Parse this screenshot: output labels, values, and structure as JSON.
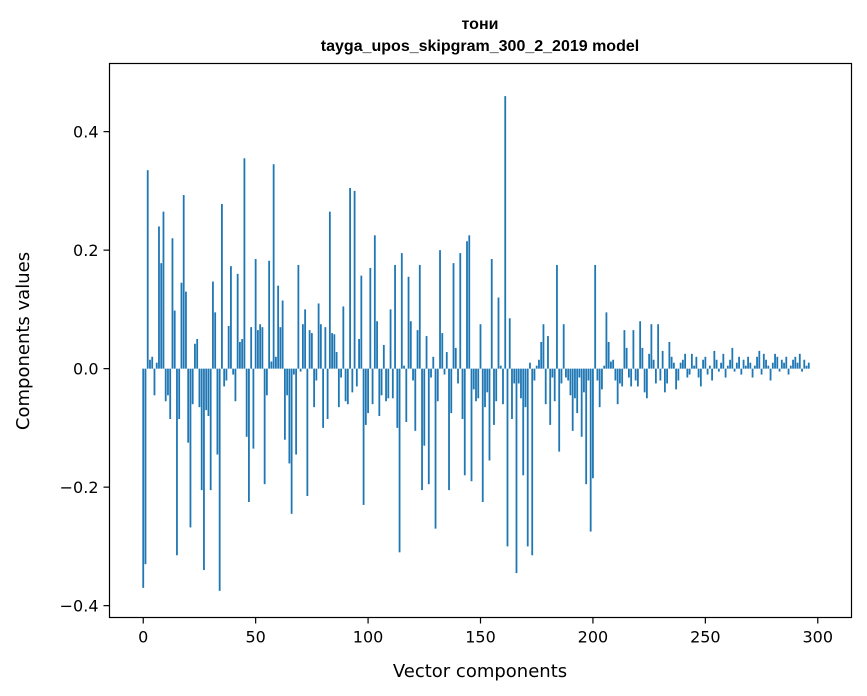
{
  "chart_data": {
    "type": "bar",
    "title": "тони",
    "subtitle": "tayga_upos_skipgram_300_2_2019 model",
    "xlabel": "Vector components",
    "ylabel": "Components values",
    "xlim": [
      -15,
      315
    ],
    "ylim": [
      -0.42,
      0.515
    ],
    "xticks": [
      0,
      50,
      100,
      150,
      200,
      250,
      300
    ],
    "yticks": [
      -0.4,
      -0.2,
      0.0,
      0.2,
      0.4
    ],
    "xtick_labels": [
      "0",
      "50",
      "100",
      "150",
      "200",
      "250",
      "300"
    ],
    "ytick_labels": [
      "−0.4",
      "−0.2",
      "0.0",
      "0.2",
      "0.4"
    ],
    "bar_color": "#1f77b4",
    "values": [
      -0.37,
      -0.33,
      0.335,
      0.015,
      0.02,
      -0.045,
      0.01,
      0.24,
      0.178,
      0.265,
      -0.055,
      -0.045,
      -0.085,
      0.22,
      0.098,
      -0.315,
      -0.085,
      0.145,
      0.293,
      0.13,
      -0.125,
      -0.268,
      -0.06,
      0.042,
      0.05,
      -0.065,
      -0.205,
      -0.34,
      -0.07,
      -0.08,
      -0.205,
      0.147,
      0.095,
      -0.145,
      -0.375,
      0.278,
      -0.03,
      -0.02,
      0.072,
      0.173,
      -0.01,
      -0.055,
      0.16,
      0.045,
      0.05,
      0.355,
      -0.115,
      -0.225,
      0.07,
      -0.135,
      0.185,
      0.065,
      0.075,
      0.07,
      -0.195,
      -0.045,
      0.182,
      0.012,
      0.345,
      0.02,
      0.14,
      0.07,
      0.115,
      -0.12,
      -0.045,
      -0.16,
      -0.245,
      -0.01,
      -0.145,
      0.175,
      -0.005,
      0.075,
      0.1,
      -0.215,
      0.065,
      0.06,
      -0.065,
      -0.02,
      0.11,
      0.075,
      -0.1,
      0.07,
      -0.085,
      0.265,
      0.06,
      0.058,
      0.028,
      -0.065,
      -0.015,
      0.105,
      -0.055,
      -0.06,
      0.305,
      -0.04,
      0.3,
      -0.03,
      0.05,
      0.157,
      -0.23,
      -0.095,
      -0.075,
      0.17,
      -0.06,
      0.225,
      0.08,
      -0.08,
      -0.045,
      0.04,
      -0.055,
      -0.05,
      0.1,
      -0.05,
      0.175,
      -0.1,
      -0.31,
      0.195,
      0.005,
      -0.09,
      0.155,
      0.08,
      -0.02,
      -0.105,
      0.065,
      0.175,
      -0.205,
      -0.13,
      0.055,
      -0.195,
      -0.015,
      0.02,
      -0.27,
      -0.055,
      0.2,
      0.06,
      -0.01,
      0.028,
      -0.205,
      -0.075,
      0.178,
      0.035,
      -0.025,
      0.195,
      -0.085,
      -0.18,
      0.215,
      0.225,
      -0.19,
      -0.035,
      -0.055,
      -0.05,
      0.075,
      -0.225,
      -0.065,
      -0.04,
      -0.155,
      0.185,
      -0.095,
      -0.055,
      0.12,
      0.005,
      -0.06,
      0.46,
      -0.3,
      0.085,
      -0.085,
      -0.025,
      -0.345,
      -0.025,
      -0.05,
      -0.18,
      -0.065,
      -0.3,
      0.01,
      -0.315,
      -0.02,
      0.005,
      0.015,
      0.045,
      0.075,
      -0.06,
      0.055,
      -0.095,
      -0.015,
      -0.055,
      0.175,
      -0.14,
      -0.025,
      0.075,
      -0.015,
      -0.02,
      -0.045,
      -0.105,
      -0.05,
      -0.075,
      -0.015,
      -0.115,
      -0.04,
      -0.195,
      -0.02,
      -0.275,
      -0.185,
      0.175,
      -0.02,
      -0.065,
      -0.035,
      0.005,
      0.095,
      0.045,
      0.012,
      0.015,
      -0.02,
      -0.06,
      -0.025,
      -0.03,
      0.065,
      0.035,
      -0.015,
      -0.03,
      0.065,
      -0.02,
      -0.03,
      0.08,
      0.035,
      -0.04,
      -0.05,
      0.025,
      0.075,
      0.015,
      -0.025,
      0.075,
      -0.02,
      0.03,
      -0.04,
      -0.025,
      0.045,
      0.02,
      0.01,
      -0.035,
      -0.02,
      0.01,
      0.015,
      0.025,
      -0.015,
      -0.01,
      0.025,
      0.005,
      0.02,
      -0.015,
      -0.03,
      0.015,
      0.02,
      -0.01,
      0.005,
      -0.02,
      0.03,
      0.015,
      -0.005,
      0.01,
      0.025,
      -0.015,
      0.005,
      0.015,
      0.035,
      -0.005,
      0.01,
      0.02,
      -0.01,
      0.015,
      0.005,
      0.02,
      0.01,
      -0.015,
      0.005,
      0.02,
      0.03,
      -0.01,
      0.025,
      0.015,
      0.005,
      -0.02,
      0.01,
      0.025,
      0.02,
      -0.005,
      0.015,
      0.01,
      0.02,
      -0.01,
      0.005,
      0.015,
      0.02,
      0.01,
      0.025,
      -0.005,
      0.015,
      0.005,
      0.01
    ]
  }
}
